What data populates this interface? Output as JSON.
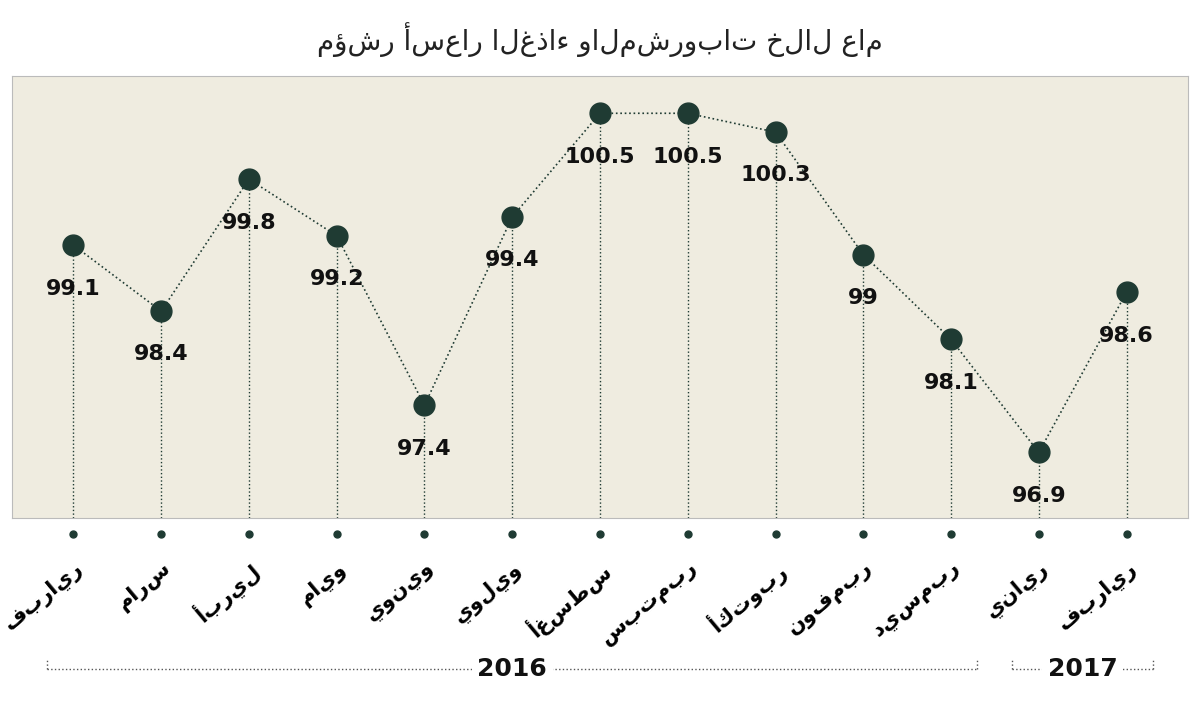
{
  "chart_data": {
    "type": "line",
    "title": "مؤشر أسعار الغذاء والمشروبات خلال عام",
    "categories": [
      "فبراير",
      "مارس",
      "أبريل",
      "مايو",
      "يونيو",
      "يوليو",
      "أغسطس",
      "سبتمبر",
      "أكتوبر",
      "نوفمبر",
      "ديسمبر",
      "يناير",
      "فبراير"
    ],
    "values": [
      99.1,
      98.4,
      99.8,
      99.2,
      97.4,
      99.4,
      100.5,
      100.5,
      100.3,
      99,
      98.1,
      96.9,
      98.6
    ],
    "year_groups": [
      {
        "label": "2016",
        "count": 11
      },
      {
        "label": "2017",
        "count": 2
      }
    ],
    "color": "#1f3b33",
    "marker": "o",
    "line_style": "dotted",
    "ylim": [
      96.2,
      100.9
    ],
    "yticks": [],
    "data_labels": true,
    "tick_labels": "x",
    "grid": false
  }
}
